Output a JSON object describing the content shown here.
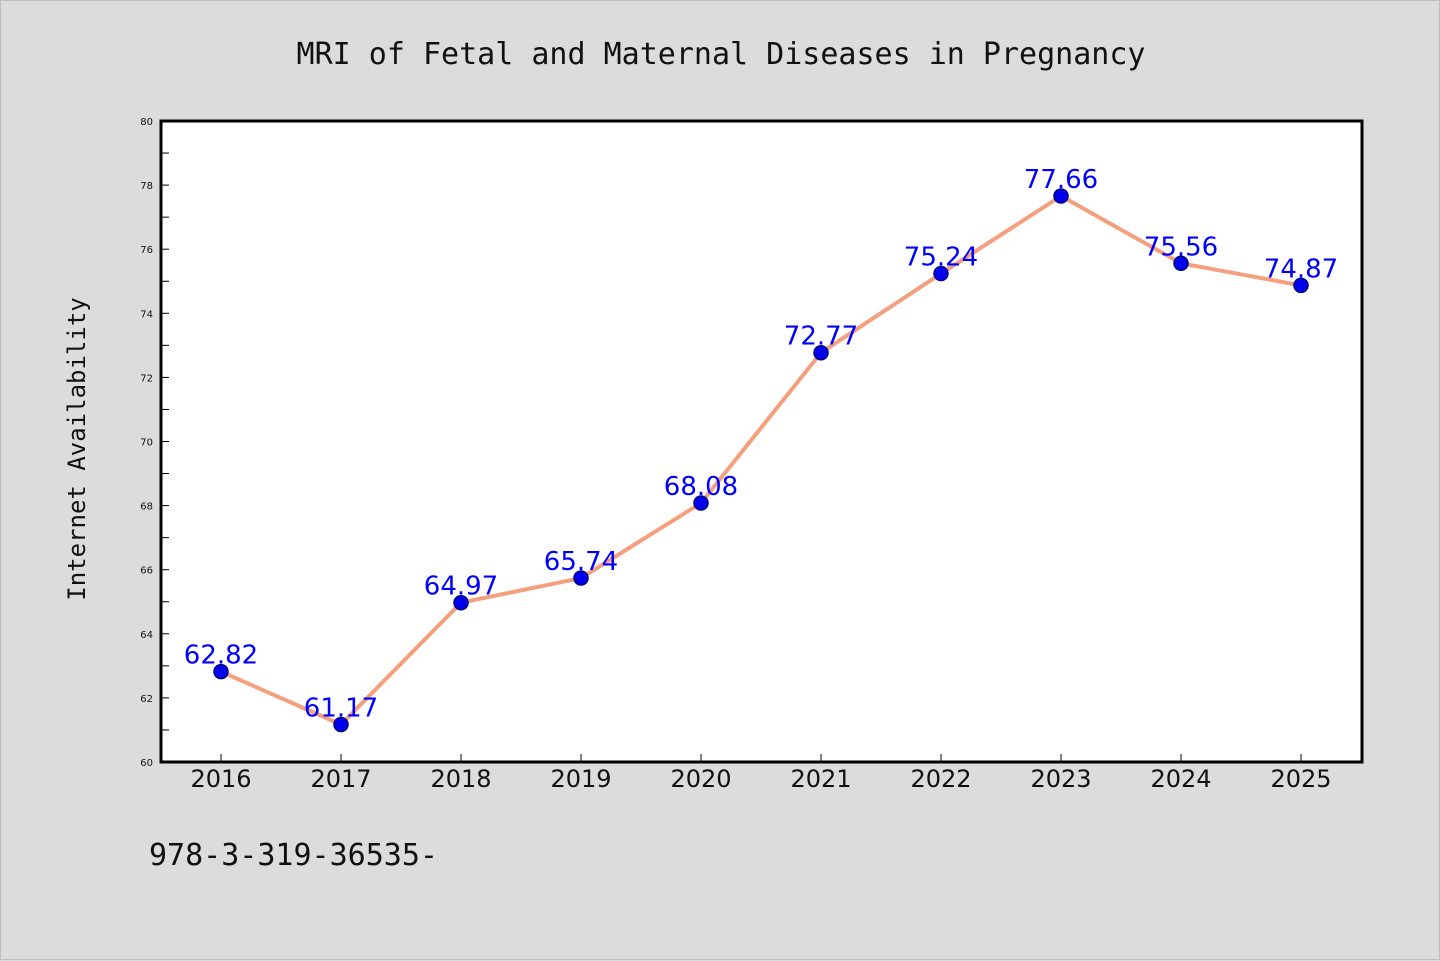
{
  "chart_data": {
    "type": "line",
    "title": "MRI of Fetal and Maternal Diseases in Pregnancy",
    "xlabel": "",
    "ylabel": "Internet Availability",
    "categories": [
      "2016",
      "2017",
      "2018",
      "2019",
      "2020",
      "2021",
      "2022",
      "2023",
      "2024",
      "2025"
    ],
    "series": [
      {
        "values": [
          62.82,
          61.17,
          64.97,
          65.74,
          68.08,
          72.77,
          75.24,
          77.66,
          75.56,
          74.87
        ]
      }
    ],
    "data_labels": [
      "62.82",
      "61.17",
      "64.97",
      "65.74",
      "68.08",
      "72.77",
      "75.24",
      "77.66",
      "75.56",
      "74.87"
    ],
    "ylim": [
      60,
      80
    ],
    "yticks": [
      "60",
      "62",
      "64",
      "66",
      "68",
      "70",
      "72",
      "74",
      "76",
      "78",
      "80"
    ],
    "grid": false,
    "legend": "none",
    "colors": {
      "line": "#f4a07e",
      "marker": "#0000ee",
      "marker_edge": "#000080",
      "data_label": "#0000ff",
      "background": "#dcdcdc",
      "plot_area": "#ffffff"
    }
  },
  "footer": {
    "text": "978-3-319-36535-"
  }
}
